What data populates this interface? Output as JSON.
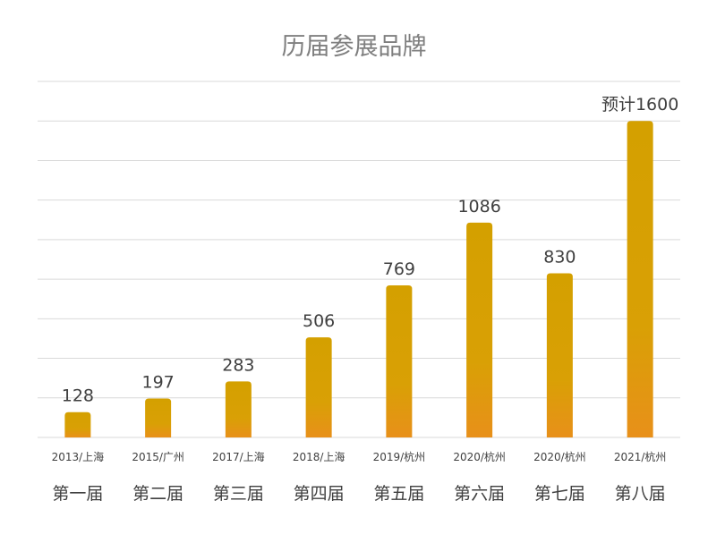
{
  "chart_data": {
    "type": "bar",
    "title": "历届参展品牌",
    "categories": [
      "第一届",
      "第二届",
      "第三届",
      "第四届",
      "第五届",
      "第六届",
      "第七届",
      "第八届"
    ],
    "sublabels": [
      "2013/上海",
      "2015/广州",
      "2017/上海",
      "2018/上海",
      "2019/杭州",
      "2020/杭州",
      "2020/杭州",
      "2021/杭州"
    ],
    "values": [
      128,
      197,
      283,
      506,
      769,
      1086,
      830,
      1600
    ],
    "data_labels": [
      "128",
      "197",
      "283",
      "506",
      "769",
      "1086",
      "830",
      "预计1600"
    ],
    "ylim": [
      0,
      1800
    ],
    "grid": true,
    "xlabel": "",
    "ylabel": "",
    "colors": {
      "bar_top": "#d4a000",
      "bar_bottom": "#e8901a",
      "grid": "#d9d9d9",
      "text": "#404040",
      "title": "#7f7f7f"
    }
  }
}
